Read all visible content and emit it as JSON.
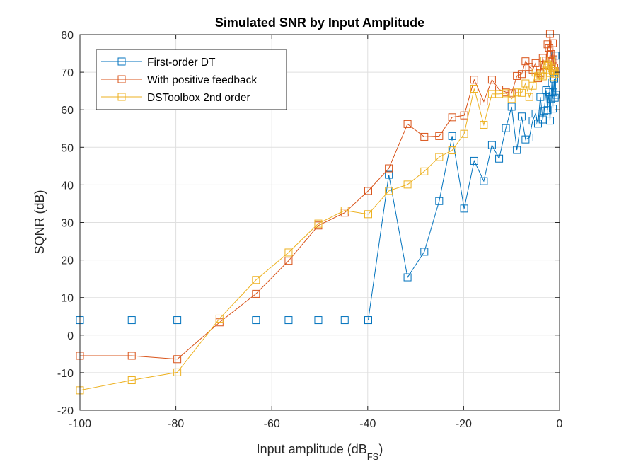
{
  "chart_data": {
    "type": "line",
    "title": "Simulated SNR by Input Amplitude",
    "xlabel": {
      "main": "Input amplitude (dB",
      "subscript": "FS",
      "close": ")"
    },
    "ylabel": "SQNR (dB)",
    "xlim": [
      -100,
      0
    ],
    "ylim": [
      -20,
      80
    ],
    "xticks": [
      -100,
      -80,
      -60,
      -40,
      -20,
      0
    ],
    "yticks": [
      -20,
      -10,
      0,
      10,
      20,
      30,
      40,
      50,
      60,
      70,
      80
    ],
    "xtick_labels": [
      "-100",
      "-80",
      "-60",
      "-40",
      "-20",
      "0"
    ],
    "ytick_labels": [
      "-20",
      "-10",
      "0",
      "10",
      "20",
      "30",
      "40",
      "50",
      "60",
      "70",
      "80"
    ],
    "grid": true,
    "marker": "square",
    "legend_position": "top-left",
    "series": [
      {
        "name": "First-order DT",
        "color": "#0072BD",
        "x": [
          -100,
          -89.2,
          -79.7,
          -63.3,
          -56.5,
          -50.3,
          -44.8,
          -39.9,
          -35.6,
          -31.7,
          -28.2,
          -25.1,
          -22.4,
          -19.9,
          -17.8,
          -15.8,
          -14.1,
          -12.6,
          -11.2,
          -10.0,
          -8.9,
          -7.9,
          -7.1,
          -6.3,
          -5.6,
          -5.0,
          -4.5,
          -4.0,
          -3.5,
          -3.2,
          -2.8,
          -2.5,
          -2.2,
          -2.0,
          -1.8,
          -1.6,
          -1.4,
          -1.3,
          -1.1,
          -1.0,
          -0.9,
          -0.8
        ],
        "y": [
          4,
          4,
          4,
          4,
          4,
          4,
          4,
          4,
          42.7,
          15.4,
          22.2,
          35.7,
          53.0,
          33.7,
          46.4,
          41.0,
          50.6,
          47.0,
          55.1,
          60.8,
          49.3,
          58.2,
          52.1,
          52.6,
          57.1,
          59.0,
          56.3,
          63.4,
          57.4,
          59.7,
          65.2,
          59.9,
          64.7,
          57.1,
          62.9,
          67.3,
          60.3,
          64.6,
          68.3,
          63.2,
          74.4,
          64.0
        ]
      },
      {
        "name": "With positive feedback",
        "color": "#D95319",
        "x": [
          -100,
          -89.2,
          -79.7,
          -70.9,
          -63.3,
          -56.5,
          -50.3,
          -44.8,
          -39.9,
          -35.6,
          -31.7,
          -28.2,
          -25.1,
          -22.4,
          -19.9,
          -17.8,
          -15.8,
          -14.1,
          -12.6,
          -11.2,
          -10.0,
          -8.9,
          -7.9,
          -7.1,
          -6.3,
          -5.6,
          -5.0,
          -4.5,
          -4.0,
          -3.5,
          -3.2,
          -2.8,
          -2.5,
          -2.2,
          -2.0,
          -1.8,
          -1.6,
          -1.4,
          -1.3,
          -1.1,
          -1.0
        ],
        "y": [
          -5.5,
          -5.5,
          -6.4,
          3.4,
          11.0,
          19.8,
          29.2,
          32.6,
          38.4,
          44.4,
          56.2,
          52.8,
          53.0,
          58.0,
          58.5,
          68.0,
          62.2,
          68.0,
          65.4,
          64.7,
          64.4,
          69.0,
          69.5,
          72.9,
          71.4,
          70.7,
          72.4,
          68.4,
          69.7,
          73.8,
          72.0,
          73.1,
          77.4,
          76.5,
          80.2,
          74.8,
          72.7,
          77.7,
          73.4,
          71.2,
          70.3
        ]
      },
      {
        "name": "DSToolbox 2nd order",
        "color": "#EDB120",
        "x": [
          -100,
          -89.2,
          -79.7,
          -70.9,
          -63.3,
          -56.5,
          -50.3,
          -44.8,
          -39.9,
          -35.6,
          -31.7,
          -28.2,
          -25.1,
          -22.4,
          -19.9,
          -17.8,
          -15.8,
          -14.1,
          -12.6,
          -11.2,
          -10.0,
          -8.9,
          -7.9,
          -7.1,
          -6.3,
          -5.6,
          -5.0,
          -4.5,
          -4.0,
          -3.5,
          -3.2,
          -2.8,
          -2.5,
          -2.2,
          -2.0,
          -1.8,
          -1.6,
          -1.4,
          -1.3,
          -1.1,
          -1.0
        ],
        "y": [
          -14.7,
          -12.0,
          -9.9,
          4.4,
          14.7,
          22.0,
          29.7,
          33.2,
          32.2,
          38.4,
          40.1,
          43.6,
          47.4,
          49.2,
          53.6,
          65.6,
          56.0,
          64.2,
          64.2,
          64.4,
          62.9,
          64.6,
          64.5,
          67.0,
          63.4,
          66.4,
          69.9,
          68.9,
          69.4,
          68.9,
          73.1,
          70.6,
          72.1,
          71.6,
          69.8,
          73.1,
          71.0,
          70.3,
          68.7,
          70.3,
          69.6
        ]
      }
    ]
  }
}
